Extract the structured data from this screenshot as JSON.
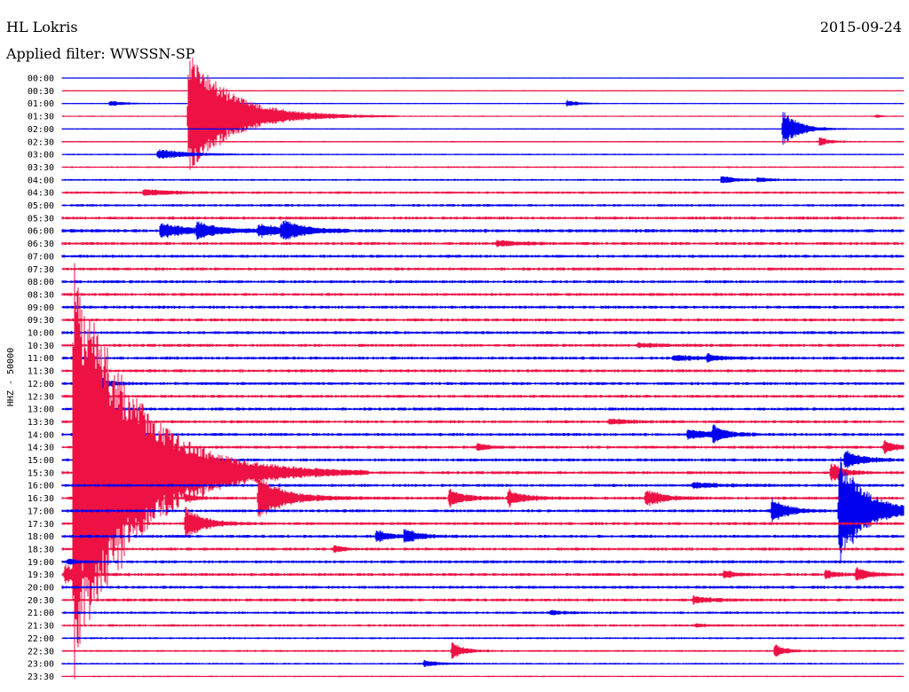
{
  "header": {
    "station": "HL Lokris",
    "date": "2015-09-24",
    "filter": "Applied filter: WWSSN-SP"
  },
  "ylabel": "HHZ - 50000",
  "colors": {
    "even": "#0000ee",
    "odd": "#ee1144",
    "text": "#000000"
  },
  "chart_data": {
    "type": "line",
    "title": "HL Lokris",
    "subtitle": "Applied filter: WWSSN-SP",
    "date": "2015-09-24",
    "ylabel": "HHZ - 50000",
    "xlabel": "",
    "row_minutes": 30,
    "row_labels": [
      "00:00",
      "00:30",
      "01:00",
      "01:30",
      "02:00",
      "02:30",
      "03:00",
      "03:30",
      "04:00",
      "04:30",
      "05:00",
      "05:30",
      "06:00",
      "06:30",
      "07:00",
      "07:30",
      "08:00",
      "08:30",
      "09:00",
      "09:30",
      "10:00",
      "10:30",
      "11:00",
      "11:30",
      "12:00",
      "12:30",
      "13:00",
      "13:30",
      "14:00",
      "14:30",
      "15:00",
      "15:30",
      "16:00",
      "16:30",
      "17:00",
      "17:30",
      "18:00",
      "18:30",
      "19:00",
      "19:30",
      "20:00",
      "20:30",
      "21:00",
      "21:30",
      "22:00",
      "22:30",
      "23:00",
      "23:30"
    ],
    "row_colors": [
      "blue",
      "red",
      "blue",
      "red",
      "blue",
      "red",
      "blue",
      "red",
      "blue",
      "red",
      "blue",
      "red",
      "blue",
      "red",
      "blue",
      "red",
      "blue",
      "red",
      "blue",
      "red",
      "blue",
      "red",
      "blue",
      "red",
      "blue",
      "red",
      "blue",
      "red",
      "blue",
      "red",
      "blue",
      "red",
      "blue",
      "red",
      "blue",
      "red",
      "blue",
      "red",
      "blue",
      "red",
      "blue",
      "red",
      "blue",
      "red",
      "blue",
      "red",
      "blue",
      "red"
    ],
    "noise_level": [
      0.4,
      0.4,
      0.5,
      0.5,
      0.5,
      0.6,
      0.6,
      0.7,
      0.8,
      1.0,
      1.0,
      1.2,
      1.4,
      1.2,
      1.2,
      1.2,
      1.2,
      1.2,
      1.2,
      1.2,
      1.2,
      1.2,
      1.2,
      1.2,
      1.2,
      1.2,
      1.2,
      1.2,
      1.2,
      1.2,
      1.2,
      1.2,
      1.2,
      1.2,
      1.2,
      1.2,
      1.2,
      1.2,
      1.2,
      1.2,
      1.2,
      1.2,
      1.0,
      1.0,
      0.8,
      0.8,
      0.7,
      0.6
    ],
    "events": [
      {
        "row": 2,
        "minute": 1.7,
        "amp": 3,
        "dur": 0.8
      },
      {
        "row": 2,
        "minute": 18,
        "amp": 4,
        "dur": 0.6
      },
      {
        "row": 3,
        "minute": 4.5,
        "amp": 75,
        "dur": 2.5,
        "clip": true
      },
      {
        "row": 3,
        "minute": 29,
        "amp": 2,
        "dur": 0.3
      },
      {
        "row": 4,
        "minute": 25.7,
        "amp": 22,
        "dur": 0.9
      },
      {
        "row": 5,
        "minute": 27,
        "amp": 5,
        "dur": 0.6
      },
      {
        "row": 6,
        "minute": 3.4,
        "amp": 6,
        "dur": 1.8
      },
      {
        "row": 8,
        "minute": 23.5,
        "amp": 5,
        "dur": 0.7
      },
      {
        "row": 8,
        "minute": 24.8,
        "amp": 3,
        "dur": 0.7
      },
      {
        "row": 9,
        "minute": 2.9,
        "amp": 4,
        "dur": 1.5
      },
      {
        "row": 12,
        "minute": 3.5,
        "amp": 9,
        "dur": 1.5
      },
      {
        "row": 12,
        "minute": 4.8,
        "amp": 9,
        "dur": 1.2
      },
      {
        "row": 12,
        "minute": 7,
        "amp": 7,
        "dur": 1.4
      },
      {
        "row": 12,
        "minute": 7.8,
        "amp": 5,
        "dur": 0.8
      },
      {
        "row": 12,
        "minute": 7.9,
        "amp": 7,
        "dur": 1.2
      },
      {
        "row": 13,
        "minute": 15.5,
        "amp": 3,
        "dur": 1.5
      },
      {
        "row": 21,
        "minute": 20.5,
        "amp": 2,
        "dur": 1.5
      },
      {
        "row": 22,
        "minute": 21.8,
        "amp": 3,
        "dur": 1.6
      },
      {
        "row": 22,
        "minute": 23,
        "amp": 4,
        "dur": 0.6
      },
      {
        "row": 24,
        "minute": 1.3,
        "amp": 8,
        "dur": 0.6
      },
      {
        "row": 27,
        "minute": 19.5,
        "amp": 3,
        "dur": 1.2
      },
      {
        "row": 28,
        "minute": 22.3,
        "amp": 5,
        "dur": 1.6
      },
      {
        "row": 28,
        "minute": 23.2,
        "amp": 10,
        "dur": 0.6
      },
      {
        "row": 29,
        "minute": 14.8,
        "amp": 5,
        "dur": 0.5
      },
      {
        "row": 29,
        "minute": 29.3,
        "amp": 9,
        "dur": 0.6
      },
      {
        "row": 30,
        "minute": 27.9,
        "amp": 12,
        "dur": 0.9
      },
      {
        "row": 31,
        "minute": 0.4,
        "amp": 250,
        "dur": 3.5,
        "clip": true
      },
      {
        "row": 31,
        "minute": 27.4,
        "amp": 12,
        "dur": 0.7
      },
      {
        "row": 32,
        "minute": 22.5,
        "amp": 3,
        "dur": 1.5
      },
      {
        "row": 33,
        "minute": 4.4,
        "amp": 5,
        "dur": 0.6
      },
      {
        "row": 33,
        "minute": 7.0,
        "amp": 25,
        "dur": 1.5
      },
      {
        "row": 33,
        "minute": 13.8,
        "amp": 10,
        "dur": 0.9
      },
      {
        "row": 33,
        "minute": 15.9,
        "amp": 10,
        "dur": 0.9
      },
      {
        "row": 33,
        "minute": 20.8,
        "amp": 10,
        "dur": 1.0
      },
      {
        "row": 34,
        "minute": 25.3,
        "amp": 14,
        "dur": 0.9
      },
      {
        "row": 34,
        "minute": 27.7,
        "amp": 65,
        "dur": 1.5
      },
      {
        "row": 35,
        "minute": 4.4,
        "amp": 20,
        "dur": 1.0
      },
      {
        "row": 36,
        "minute": 11.2,
        "amp": 8,
        "dur": 0.7
      },
      {
        "row": 36,
        "minute": 12.2,
        "amp": 10,
        "dur": 0.7
      },
      {
        "row": 37,
        "minute": 9.7,
        "amp": 4,
        "dur": 0.5
      },
      {
        "row": 38,
        "minute": 0.2,
        "amp": 4,
        "dur": 0.4
      },
      {
        "row": 39,
        "minute": 0.1,
        "amp": 12,
        "dur": 0.8
      },
      {
        "row": 39,
        "minute": 23.6,
        "amp": 5,
        "dur": 0.6
      },
      {
        "row": 39,
        "minute": 27.2,
        "amp": 5,
        "dur": 0.6
      },
      {
        "row": 39,
        "minute": 28.3,
        "amp": 8,
        "dur": 0.7
      },
      {
        "row": 41,
        "minute": 22.5,
        "amp": 4,
        "dur": 1.0
      },
      {
        "row": 42,
        "minute": 17.4,
        "amp": 3,
        "dur": 0.6
      },
      {
        "row": 43,
        "minute": 22.6,
        "amp": 2,
        "dur": 0.5
      },
      {
        "row": 45,
        "minute": 13.9,
        "amp": 11,
        "dur": 0.6
      },
      {
        "row": 45,
        "minute": 25.4,
        "amp": 8,
        "dur": 0.6
      },
      {
        "row": 46,
        "minute": 12.9,
        "amp": 4,
        "dur": 0.8
      }
    ]
  }
}
